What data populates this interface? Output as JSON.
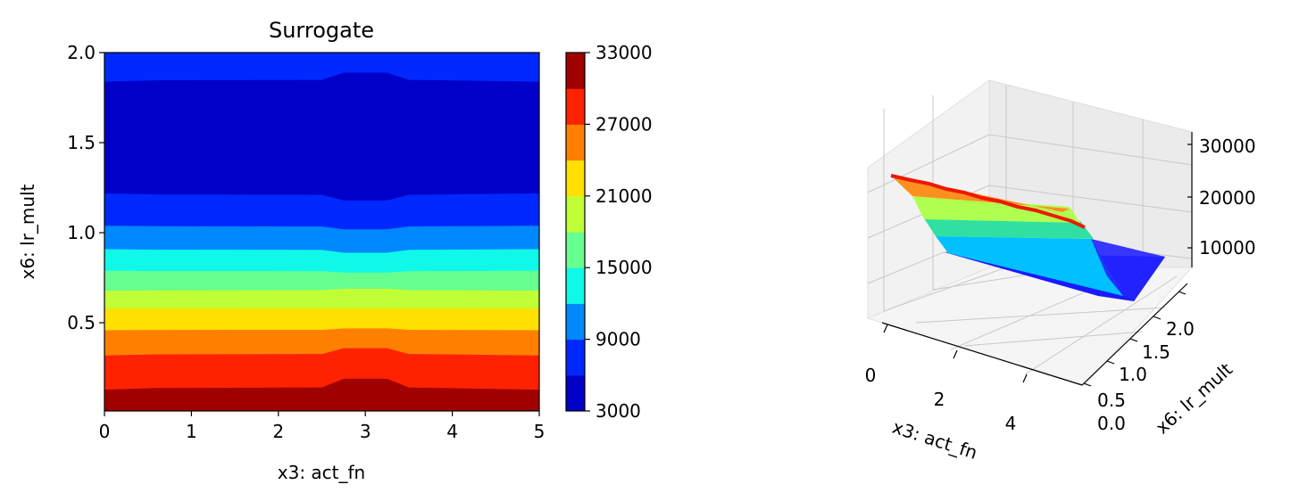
{
  "chart_data": [
    {
      "type": "contour",
      "title": "Surrogate",
      "xlabel": "x3: act_fn",
      "ylabel": "x6: lr_mult",
      "xlim": [
        0,
        5
      ],
      "ylim": [
        0.01,
        2.0
      ],
      "xticks": [
        "0",
        "1",
        "2",
        "3",
        "4",
        "5"
      ],
      "yticks": [
        "0.5",
        "1.0",
        "1.5",
        "2.0"
      ],
      "bands": [
        {
          "level": [
            30000,
            33000
          ],
          "color": "#a00000",
          "y_left": [
            0.01,
            0.13
          ],
          "y_mid": [
            0.01,
            0.19
          ]
        },
        {
          "level": [
            27000,
            30000
          ],
          "color": "#ff2200",
          "y_left": [
            0.13,
            0.32
          ],
          "y_mid": [
            0.19,
            0.36
          ]
        },
        {
          "level": [
            24000,
            27000
          ],
          "color": "#ff8000",
          "y_left": [
            0.32,
            0.46
          ],
          "y_mid": [
            0.36,
            0.47
          ]
        },
        {
          "level": [
            21000,
            24000
          ],
          "color": "#ffe000",
          "y_left": [
            0.46,
            0.58
          ],
          "y_mid": [
            0.47,
            0.58
          ]
        },
        {
          "level": [
            18000,
            21000
          ],
          "color": "#c0ff36",
          "y_left": [
            0.58,
            0.68
          ],
          "y_mid": [
            0.58,
            0.69
          ]
        },
        {
          "level": [
            15000,
            18000
          ],
          "color": "#66ff90",
          "y_left": [
            0.68,
            0.79
          ],
          "y_mid": [
            0.69,
            0.78
          ]
        },
        {
          "level": [
            12000,
            15000
          ],
          "color": "#10f8e8",
          "y_left": [
            0.79,
            0.91
          ],
          "y_mid": [
            0.78,
            0.89
          ]
        },
        {
          "level": [
            9000,
            12000
          ],
          "color": "#0088ff",
          "y_left": [
            0.91,
            1.04
          ],
          "y_mid": [
            0.89,
            1.02
          ]
        },
        {
          "level": [
            6000,
            9000
          ],
          "color": "#0028ff",
          "y_left": [
            1.04,
            1.22
          ],
          "y_mid": [
            1.02,
            1.18
          ]
        },
        {
          "level": [
            3000,
            6000
          ],
          "color": "#0000c8",
          "y_left": [
            1.22,
            1.84
          ],
          "y_mid": [
            1.18,
            1.89
          ]
        },
        {
          "level": [
            6000,
            9000
          ],
          "color": "#0028ff",
          "y_left": [
            1.84,
            2.0
          ],
          "y_mid": [
            1.89,
            2.0
          ]
        }
      ]
    },
    {
      "type": "colorbar",
      "range": [
        3000,
        33000
      ],
      "ticks": [
        "3000",
        "9000",
        "15000",
        "21000",
        "27000",
        "33000"
      ],
      "colors": [
        "#0000c8",
        "#0028ff",
        "#0088ff",
        "#10f8e8",
        "#66ff90",
        "#c0ff36",
        "#ffe000",
        "#ff8000",
        "#ff2200",
        "#a00000"
      ]
    },
    {
      "type": "surface3d",
      "xlabel": "x3: act_fn",
      "ylabel": "x6: lr_mult",
      "xticks": [
        "0",
        "2",
        "4"
      ],
      "yticks": [
        "0.0",
        "0.5",
        "1.0",
        "1.5",
        "2.0"
      ],
      "zticks": [
        "10000",
        "20000",
        "30000"
      ],
      "xlim": [
        0,
        5
      ],
      "ylim": [
        0,
        2
      ],
      "zlim": [
        3000,
        33000
      ]
    }
  ]
}
